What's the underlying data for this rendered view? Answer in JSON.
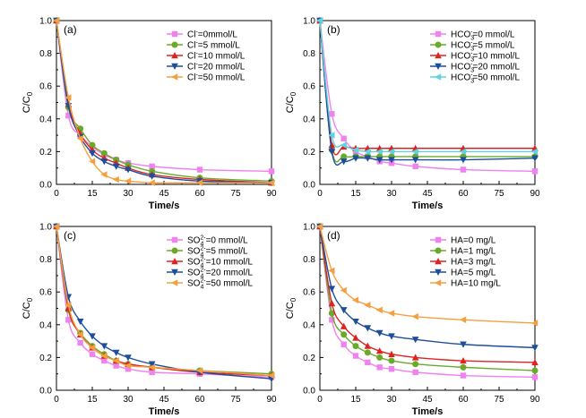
{
  "figure": {
    "xlabel": "Time/s",
    "ylabel_main": "C/C",
    "ylabel_sub": "0"
  },
  "chart_data": [
    {
      "type": "line",
      "panel_label": "(a)",
      "xlabel": "Time/s",
      "ylabel": "C/C0",
      "xlim": [
        0,
        90
      ],
      "ylim": [
        0,
        1.0
      ],
      "xticks": [
        0,
        15,
        30,
        45,
        60,
        75,
        90
      ],
      "yticks": [
        0.0,
        0.2,
        0.4,
        0.6,
        0.8,
        1.0
      ],
      "grid": false,
      "legend_position": "top-right",
      "x": [
        0,
        5,
        10,
        15,
        20,
        25,
        30,
        40,
        60,
        90
      ],
      "series": [
        {
          "name": "Cl⁻=0mmol/L",
          "legend": {
            "main": "Cl",
            "sup": "-",
            "sub": "",
            "rest": "=0mmol/L"
          },
          "color": "#ee82ee",
          "marker": "square",
          "values": [
            1.0,
            0.42,
            0.3,
            0.23,
            0.18,
            0.15,
            0.13,
            0.11,
            0.09,
            0.08
          ]
        },
        {
          "name": "Cl⁻=5 mmol/L",
          "legend": {
            "main": "Cl",
            "sup": "-",
            "sub": "",
            "rest": "=5 mmol/L"
          },
          "color": "#6aaa2a",
          "marker": "circle",
          "values": [
            1.0,
            0.47,
            0.34,
            0.24,
            0.19,
            0.15,
            0.12,
            0.08,
            0.04,
            0.02
          ]
        },
        {
          "name": "Cl⁻=10 mmol/L",
          "legend": {
            "main": "Cl",
            "sup": "-",
            "sub": "",
            "rest": "=10 mmol/L"
          },
          "color": "#dd2222",
          "marker": "triangle-up",
          "values": [
            1.0,
            0.49,
            0.31,
            0.21,
            0.16,
            0.13,
            0.1,
            0.06,
            0.03,
            0.01
          ]
        },
        {
          "name": "Cl⁻=20 mmol/L",
          "legend": {
            "main": "Cl",
            "sup": "-",
            "sub": "",
            "rest": "=20 mmol/L"
          },
          "color": "#1e4e9a",
          "marker": "triangle-down",
          "values": [
            1.0,
            0.48,
            0.29,
            0.19,
            0.14,
            0.11,
            0.09,
            0.05,
            0.02,
            0.01
          ]
        },
        {
          "name": "Cl⁻=50 mmol/L",
          "legend": {
            "main": "Cl",
            "sup": "-",
            "sub": "",
            "rest": "=50 mmol/L"
          },
          "color": "#f5a040",
          "marker": "triangle-left",
          "values": [
            1.0,
            0.53,
            0.28,
            0.14,
            0.06,
            0.03,
            0.02,
            0.01,
            0.01,
            0.01
          ]
        }
      ]
    },
    {
      "type": "line",
      "panel_label": "(b)",
      "xlabel": "Time/s",
      "ylabel": "C/C0",
      "xlim": [
        0,
        90
      ],
      "ylim": [
        0,
        1.0
      ],
      "xticks": [
        0,
        15,
        30,
        45,
        60,
        75,
        90
      ],
      "yticks": [
        0.0,
        0.2,
        0.4,
        0.6,
        0.8,
        1.0
      ],
      "grid": false,
      "legend_position": "top-right",
      "x": [
        0,
        5,
        10,
        15,
        20,
        25,
        30,
        40,
        60,
        90
      ],
      "series": [
        {
          "name": "HCO₃⁻=0 mmol/L",
          "legend": {
            "main": "HCO",
            "sub": "3",
            "sup": "-",
            "rest": "=0 mmol/L"
          },
          "color": "#ee82ee",
          "marker": "square",
          "values": [
            1.0,
            0.43,
            0.28,
            0.2,
            0.17,
            0.14,
            0.13,
            0.11,
            0.09,
            0.08
          ]
        },
        {
          "name": "HCO₃⁻=5 mmol/L",
          "legend": {
            "main": "HCO",
            "sub": "3",
            "sup": "-",
            "rest": "=5 mmol/L"
          },
          "color": "#6aaa2a",
          "marker": "circle",
          "values": [
            1.0,
            0.21,
            0.17,
            0.17,
            0.17,
            0.17,
            0.17,
            0.17,
            0.17,
            0.17
          ]
        },
        {
          "name": "HCO₃⁻=10 mmol/L",
          "legend": {
            "main": "HCO",
            "sub": "3",
            "sup": "-",
            "rest": "=10 mmol/L"
          },
          "color": "#dd2222",
          "marker": "triangle-up",
          "values": [
            1.0,
            0.24,
            0.23,
            0.22,
            0.22,
            0.22,
            0.22,
            0.22,
            0.22,
            0.22
          ]
        },
        {
          "name": "HCO₃⁻=20 mmol/L",
          "legend": {
            "main": "HCO",
            "sub": "3",
            "sup": "-",
            "rest": "=20 mmol/L"
          },
          "color": "#1e4e9a",
          "marker": "triangle-down",
          "values": [
            1.0,
            0.2,
            0.14,
            0.16,
            0.16,
            0.15,
            0.15,
            0.15,
            0.15,
            0.16
          ]
        },
        {
          "name": "HCO₃⁻=50 mmol/L",
          "legend": {
            "main": "HCO",
            "sub": "3",
            "sup": "-",
            "rest": "=50 mmol/L"
          },
          "color": "#5fd3e0",
          "marker": "triangle-left",
          "values": [
            1.0,
            0.3,
            0.24,
            0.21,
            0.2,
            0.2,
            0.2,
            0.2,
            0.2,
            0.2
          ]
        }
      ]
    },
    {
      "type": "line",
      "panel_label": "(c)",
      "xlabel": "Time/s",
      "ylabel": "C/C0",
      "xlim": [
        0,
        90
      ],
      "ylim": [
        0,
        1.0
      ],
      "xticks": [
        0,
        15,
        30,
        45,
        60,
        75,
        90
      ],
      "yticks": [
        0.0,
        0.2,
        0.4,
        0.6,
        0.8,
        1.0
      ],
      "grid": false,
      "legend_position": "top-right",
      "x": [
        0,
        5,
        10,
        15,
        20,
        25,
        30,
        40,
        60,
        90
      ],
      "series": [
        {
          "name": "SO₄²⁻=0 mmol/L",
          "legend": {
            "main": "SO",
            "sub": "4",
            "sup": "2-",
            "rest": "=0 mmol/L"
          },
          "color": "#ee82ee",
          "marker": "square",
          "values": [
            1.0,
            0.43,
            0.29,
            0.22,
            0.18,
            0.15,
            0.13,
            0.11,
            0.1,
            0.08
          ]
        },
        {
          "name": "SO₄²⁻=5 mmol/L",
          "legend": {
            "main": "SO",
            "sub": "4",
            "sup": "2-",
            "rest": "=5 mmol/L"
          },
          "color": "#6aaa2a",
          "marker": "circle",
          "values": [
            1.0,
            0.49,
            0.35,
            0.27,
            0.22,
            0.18,
            0.16,
            0.14,
            0.12,
            0.1
          ]
        },
        {
          "name": "SO₄²⁻=10 mmol/L",
          "legend": {
            "main": "SO",
            "sub": "4",
            "sup": "2-",
            "rest": "=10 mmol/L"
          },
          "color": "#dd2222",
          "marker": "triangle-up",
          "values": [
            1.0,
            0.5,
            0.34,
            0.26,
            0.21,
            0.18,
            0.16,
            0.14,
            0.11,
            0.09
          ]
        },
        {
          "name": "SO₄²⁻=20 mmol/L",
          "legend": {
            "main": "SO",
            "sub": "4",
            "sup": "2-",
            "rest": "=20 mmol/L"
          },
          "color": "#1e4e9a",
          "marker": "triangle-down",
          "values": [
            1.0,
            0.57,
            0.42,
            0.33,
            0.27,
            0.23,
            0.2,
            0.16,
            0.11,
            0.07
          ]
        },
        {
          "name": "SO₄²⁻=50 mmol/L",
          "legend": {
            "main": "SO",
            "sub": "4",
            "sup": "2-",
            "rest": "=50 mmol/L"
          },
          "color": "#f5a040",
          "marker": "triangle-left",
          "values": [
            1.0,
            0.52,
            0.34,
            0.26,
            0.21,
            0.18,
            0.15,
            0.14,
            0.12,
            0.09
          ]
        }
      ]
    },
    {
      "type": "line",
      "panel_label": "(d)",
      "xlabel": "Time/s",
      "ylabel": "C/C0",
      "xlim": [
        0,
        90
      ],
      "ylim": [
        0,
        1.0
      ],
      "xticks": [
        0,
        15,
        30,
        45,
        60,
        75,
        90
      ],
      "yticks": [
        0.0,
        0.2,
        0.4,
        0.6,
        0.8,
        1.0
      ],
      "grid": false,
      "legend_position": "top-right",
      "x": [
        0,
        5,
        10,
        15,
        20,
        25,
        30,
        40,
        60,
        90
      ],
      "series": [
        {
          "name": "HA=0 mg/L",
          "legend": {
            "main": "HA=0 mg/L",
            "sub": "",
            "sup": "",
            "rest": ""
          },
          "color": "#ee82ee",
          "marker": "square",
          "values": [
            1.0,
            0.43,
            0.28,
            0.21,
            0.17,
            0.14,
            0.13,
            0.11,
            0.09,
            0.08
          ]
        },
        {
          "name": "HA=1 mg/L",
          "legend": {
            "main": "HA=1 mg/L",
            "sub": "",
            "sup": "",
            "rest": ""
          },
          "color": "#6aaa2a",
          "marker": "circle",
          "values": [
            1.0,
            0.47,
            0.34,
            0.27,
            0.23,
            0.2,
            0.18,
            0.16,
            0.14,
            0.12
          ]
        },
        {
          "name": "HA=3 mg/L",
          "legend": {
            "main": "HA=3 mg/L",
            "sub": "",
            "sup": "",
            "rest": ""
          },
          "color": "#dd2222",
          "marker": "triangle-up",
          "values": [
            1.0,
            0.53,
            0.39,
            0.32,
            0.27,
            0.24,
            0.22,
            0.2,
            0.18,
            0.17
          ]
        },
        {
          "name": "HA=5 mg/L",
          "legend": {
            "main": "HA=5 mg/L",
            "sub": "",
            "sup": "",
            "rest": ""
          },
          "color": "#1e4e9a",
          "marker": "triangle-down",
          "values": [
            1.0,
            0.62,
            0.49,
            0.42,
            0.38,
            0.35,
            0.33,
            0.31,
            0.28,
            0.26
          ]
        },
        {
          "name": "HA=10 mg/L",
          "legend": {
            "main": "HA=10 mg/L",
            "sub": "",
            "sup": "",
            "rest": ""
          },
          "color": "#f5a040",
          "marker": "triangle-left",
          "values": [
            1.0,
            0.73,
            0.61,
            0.55,
            0.52,
            0.49,
            0.47,
            0.45,
            0.43,
            0.41
          ]
        }
      ]
    }
  ]
}
